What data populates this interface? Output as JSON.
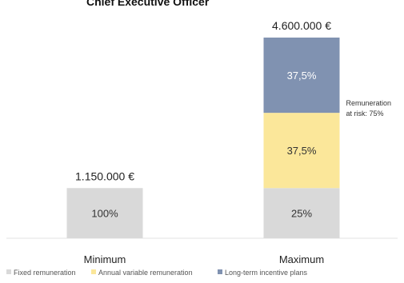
{
  "chart_data": {
    "type": "bar",
    "stacked": true,
    "title": "Chief Executive Officer",
    "categories": [
      "Minimum",
      "Maximum"
    ],
    "totals": [
      "1.150.000 €",
      "4.600.000 €"
    ],
    "series": [
      {
        "name": "Fixed remuneration",
        "color": "#d9d9d9",
        "values": [
          1150000,
          1150000
        ],
        "labels": [
          "100%",
          "25%"
        ]
      },
      {
        "name": "Annual variable remuneration",
        "color": "#fbe79a",
        "values": [
          0,
          1725000
        ],
        "labels": [
          "",
          "37,5%"
        ]
      },
      {
        "name": "Long-term incentive plans",
        "color": "#8092b1",
        "values": [
          0,
          1725000
        ],
        "labels": [
          "",
          "37,5%"
        ]
      }
    ],
    "annotation": {
      "lines": [
        "Remuneration",
        "at risk: 75%"
      ]
    },
    "ylim": [
      0,
      4600000
    ],
    "grid": false,
    "legend": "bottom"
  }
}
